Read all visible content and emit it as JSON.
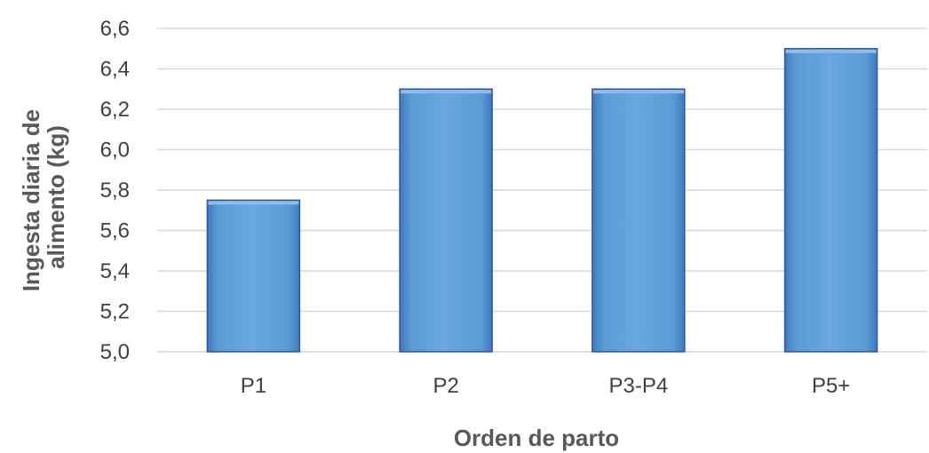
{
  "chart_data": {
    "type": "bar",
    "title": "",
    "categories": [
      "P1",
      "P2",
      "P3-P4",
      "P5+"
    ],
    "values": [
      5.75,
      6.3,
      6.3,
      6.5
    ],
    "xlabel": "Orden de parto",
    "ylabel": "Ingesta diaria de alimento (kg)",
    "ylabel_lines": [
      "Ingesta diaria de",
      "alimento (kg)"
    ],
    "ylim": [
      5.0,
      6.6
    ],
    "yticks": [
      "5,0",
      "5,2",
      "5,4",
      "5,6",
      "5,8",
      "6,0",
      "6,2",
      "6,4",
      "6,6"
    ],
    "grid": true,
    "legend": "none",
    "colors": {
      "bar": "#5b9bd5",
      "bar_light": "#8fbcea",
      "bar_dark": "#3f78c0",
      "bar_edge": "#2e5b93",
      "grid": "#d9d9d9",
      "tick_text": "#404040",
      "axis_title": "#595959"
    }
  }
}
